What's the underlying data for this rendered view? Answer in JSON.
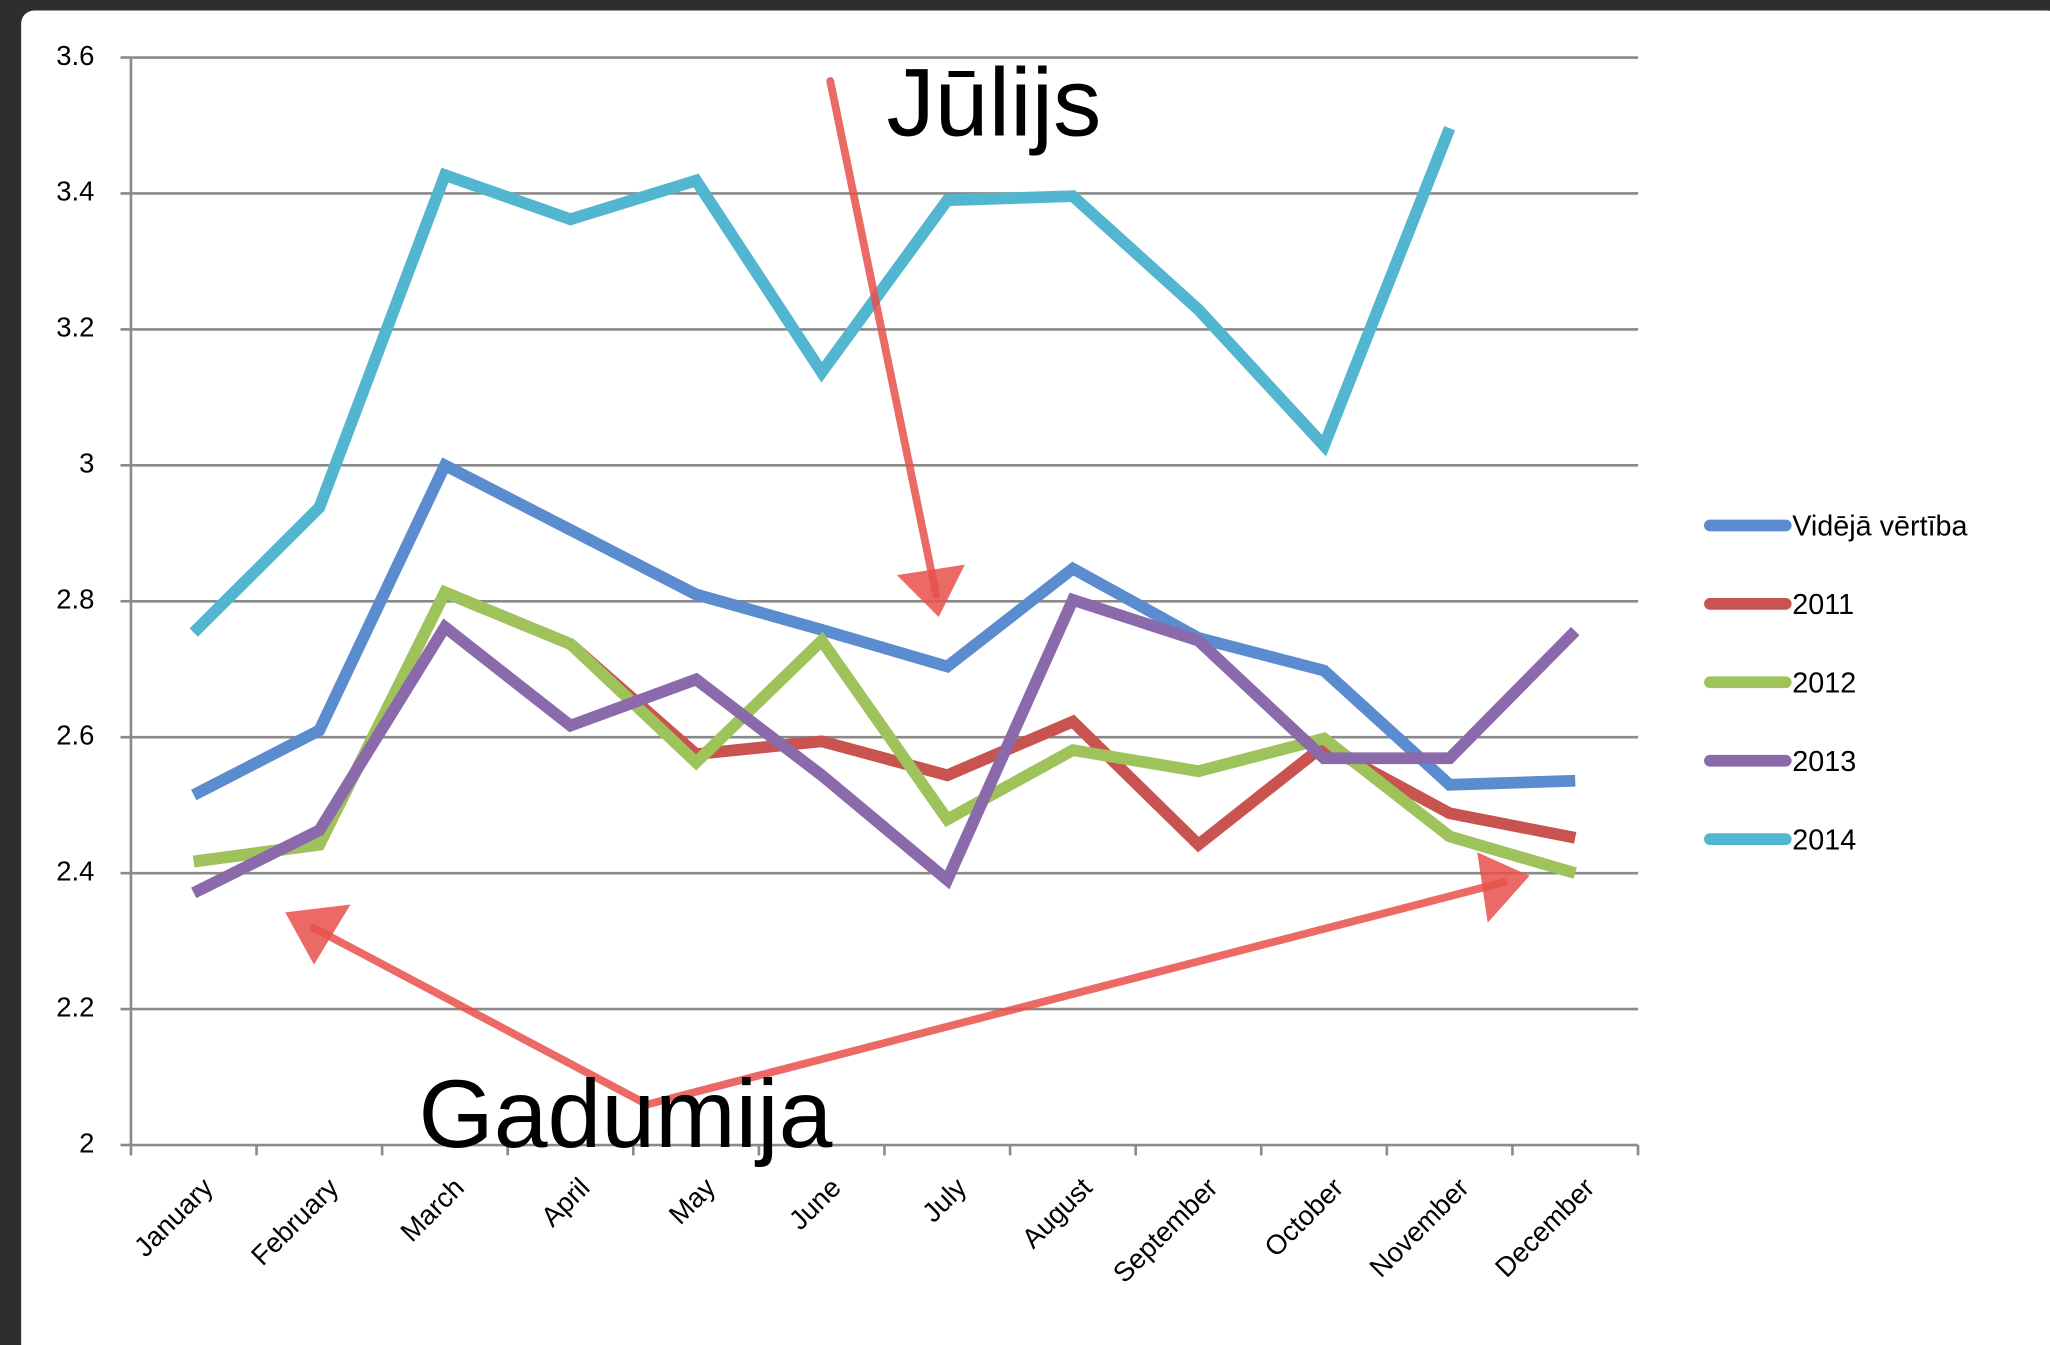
{
  "chart_data": {
    "type": "line",
    "categories": [
      "January",
      "February",
      "March",
      "April",
      "May",
      "June",
      "July",
      "August",
      "September",
      "October",
      "November",
      "December"
    ],
    "series": [
      {
        "name": "Vidējā vērtība",
        "color": "#5a8ccf",
        "values": [
          2.515,
          2.61,
          3.0,
          2.905,
          2.81,
          2.758,
          2.704,
          2.848,
          2.746,
          2.698,
          2.53,
          2.536
        ]
      },
      {
        "name": "2011",
        "color": "#c9544f",
        "values": [
          2.417,
          2.442,
          2.813,
          2.737,
          2.575,
          2.594,
          2.544,
          2.623,
          2.442,
          2.588,
          2.488,
          2.452
        ]
      },
      {
        "name": "2012",
        "color": "#9fc35b",
        "values": [
          2.417,
          2.442,
          2.813,
          2.737,
          2.563,
          2.742,
          2.479,
          2.581,
          2.55,
          2.598,
          2.454,
          2.4
        ]
      },
      {
        "name": "2013",
        "color": "#8a6aab",
        "values": [
          2.371,
          2.463,
          2.762,
          2.617,
          2.685,
          2.544,
          2.39,
          2.802,
          2.742,
          2.569,
          2.569,
          2.756
        ]
      },
      {
        "name": "2014",
        "color": "#52b6d1",
        "values": [
          2.754,
          2.938,
          3.427,
          3.362,
          3.419,
          3.137,
          3.39,
          3.396,
          3.229,
          3.029,
          3.496,
          null
        ]
      }
    ],
    "ylim": [
      2,
      3.6
    ],
    "yticks": [
      2,
      2.2,
      2.4,
      2.6,
      2.8,
      3,
      3.2,
      3.4,
      3.6
    ],
    "grid": true,
    "annotations": [
      "Jūlijs",
      "Gadumija"
    ]
  }
}
